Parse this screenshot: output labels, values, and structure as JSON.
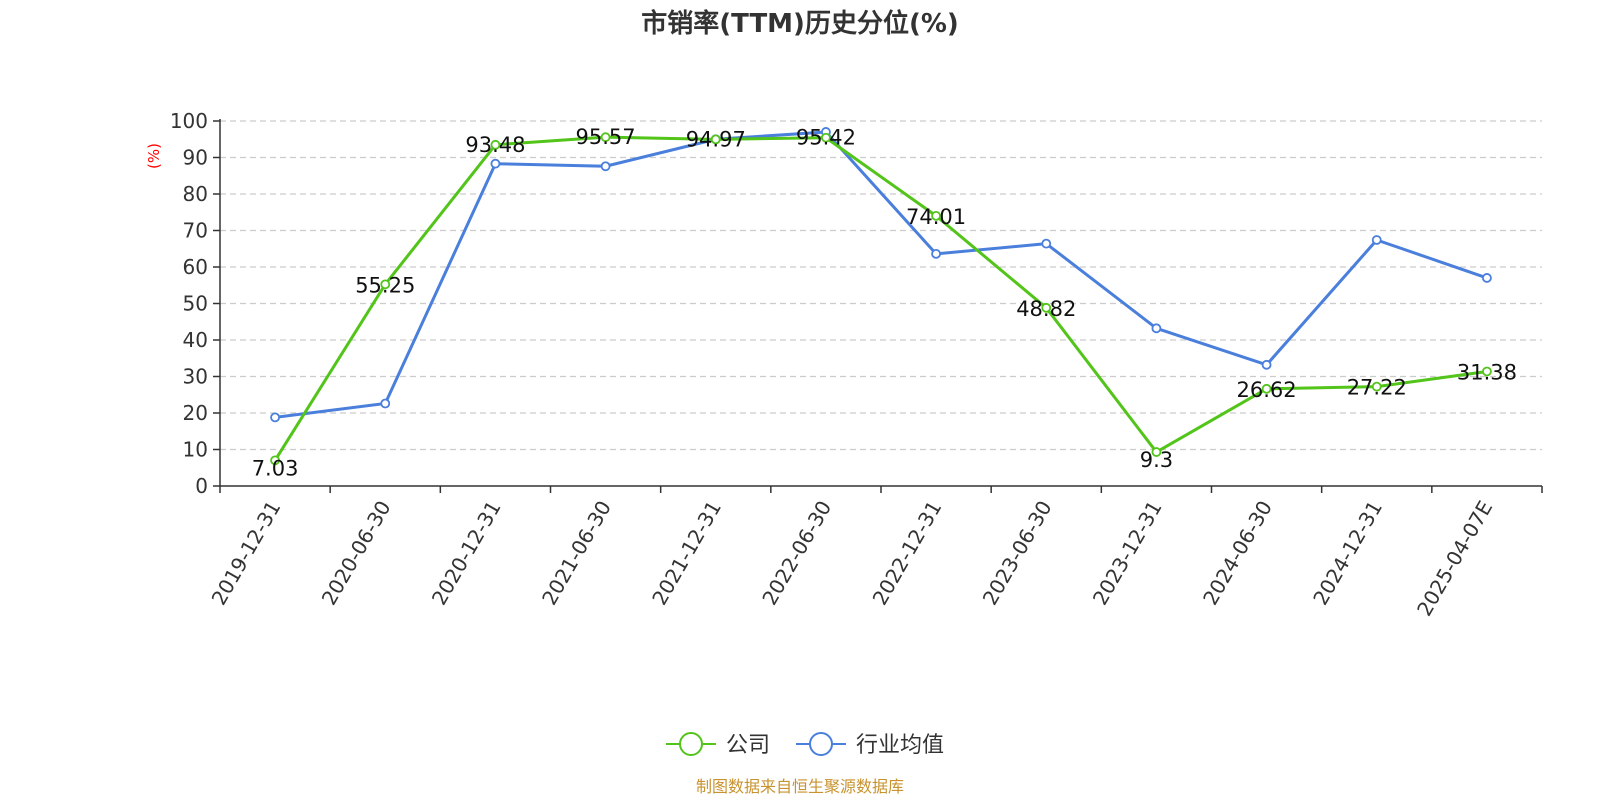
{
  "chart_data": {
    "type": "line",
    "title": "市销率(TTM)历史分位(%)",
    "ylabel": "(%)",
    "xlabel": "",
    "ylim": [
      0,
      100
    ],
    "yticks": [
      "0",
      "10",
      "20",
      "30",
      "40",
      "50",
      "60",
      "70",
      "80",
      "90",
      "100"
    ],
    "grid": true,
    "legend_position": "bottom-center",
    "categories": [
      "2019-12-31",
      "2020-06-30",
      "2020-12-31",
      "2021-06-30",
      "2021-12-31",
      "2022-06-30",
      "2022-12-31",
      "2023-06-30",
      "2023-12-31",
      "2024-06-30",
      "2024-12-31",
      "2025-04-07E"
    ],
    "series": [
      {
        "name": "公司",
        "color": "#52c41a",
        "values": [
          7.03,
          55.25,
          93.48,
          95.57,
          94.97,
          95.42,
          74.01,
          48.82,
          9.3,
          26.62,
          27.22,
          31.38
        ],
        "labels": [
          "7.03",
          "55.25",
          "93.48",
          "95.57",
          "94.97",
          "95.42",
          "74.01",
          "48.82",
          "9.3",
          "26.62",
          "27.22",
          "31.38"
        ]
      },
      {
        "name": "行业均值",
        "color": "#4a7fdc",
        "values": [
          18.8,
          22.6,
          88.3,
          87.6,
          95.0,
          97.0,
          63.6,
          66.4,
          43.2,
          33.2,
          67.4,
          57.0
        ]
      }
    ]
  },
  "source_text": "制图数据来自恒生聚源数据库"
}
